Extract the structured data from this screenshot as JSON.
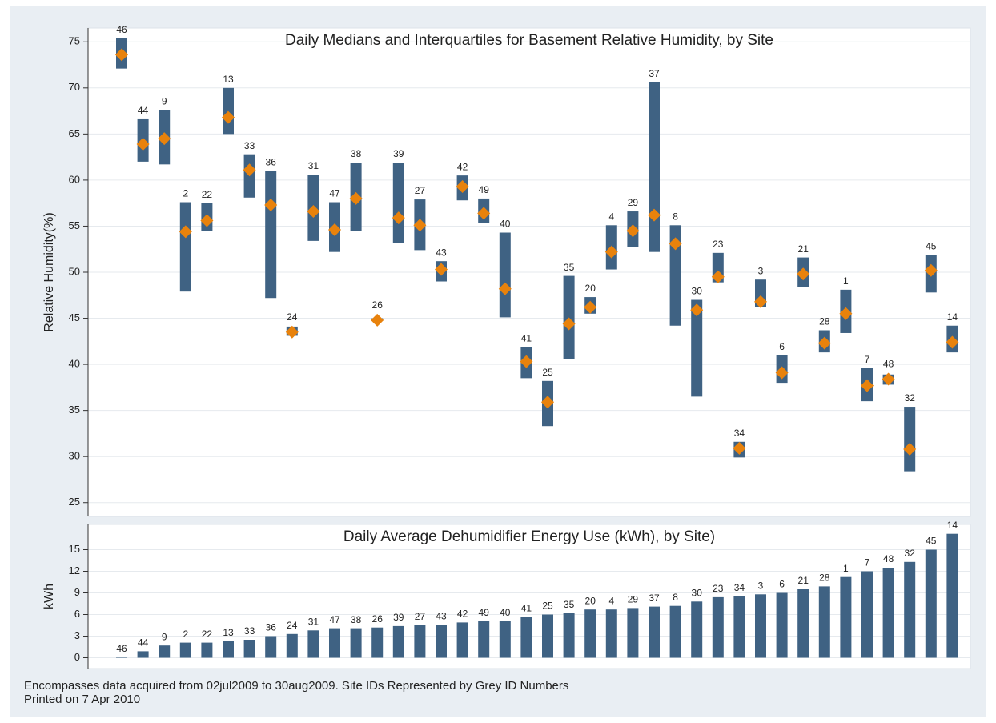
{
  "chart_data": [
    {
      "type": "box",
      "title": "Daily Medians and Interquartiles for Basement Relative Humidity, by Site",
      "y_label": "Relative Humidity(%)",
      "categories": [
        "46",
        "44",
        "9",
        "2",
        "22",
        "13",
        "33",
        "36",
        "24",
        "31",
        "47",
        "38",
        "26",
        "39",
        "27",
        "43",
        "42",
        "49",
        "40",
        "41",
        "25",
        "35",
        "20",
        "4",
        "29",
        "37",
        "8",
        "30",
        "23",
        "34",
        "3",
        "6",
        "21",
        "28",
        "1",
        "7",
        "48",
        "32",
        "45",
        "14"
      ],
      "q1": [
        72.1,
        62.0,
        61.7,
        47.9,
        54.5,
        65.0,
        58.1,
        47.2,
        43.1,
        53.4,
        52.2,
        54.5,
        44.7,
        53.2,
        52.4,
        49.0,
        57.8,
        55.3,
        45.1,
        38.5,
        33.3,
        40.6,
        45.5,
        50.3,
        52.7,
        52.2,
        44.2,
        36.5,
        48.9,
        29.9,
        46.2,
        38.0,
        48.4,
        41.3,
        43.4,
        36.0,
        37.8,
        28.4,
        47.8,
        41.3
      ],
      "median": [
        73.6,
        63.9,
        64.5,
        54.4,
        55.6,
        66.8,
        61.1,
        57.3,
        43.5,
        56.6,
        54.6,
        58.0,
        44.8,
        55.9,
        55.1,
        50.3,
        59.3,
        56.4,
        48.2,
        40.3,
        35.9,
        44.4,
        46.2,
        52.2,
        54.5,
        56.2,
        53.1,
        45.9,
        49.5,
        30.9,
        46.8,
        39.1,
        49.8,
        42.3,
        45.5,
        37.7,
        38.4,
        30.8,
        50.2,
        42.4
      ],
      "q3": [
        75.4,
        66.6,
        67.6,
        57.6,
        57.5,
        70.0,
        62.8,
        61.0,
        44.1,
        60.6,
        57.6,
        61.9,
        45.0,
        61.9,
        57.9,
        51.2,
        60.5,
        58.0,
        54.3,
        41.9,
        38.2,
        49.6,
        47.3,
        55.1,
        56.6,
        70.6,
        55.1,
        47.0,
        52.1,
        31.6,
        49.2,
        41.0,
        51.6,
        43.7,
        48.1,
        39.6,
        38.9,
        35.4,
        51.9,
        44.2
      ],
      "color": "#3f6283",
      "median_color": "#e8820c",
      "ylim": [
        23.5,
        76.5
      ],
      "yticks": [
        25,
        30,
        35,
        40,
        45,
        50,
        55,
        60,
        65,
        70,
        75
      ],
      "grid": true
    },
    {
      "type": "bar",
      "title": "Daily Average Dehumidifier Energy Use (kWh), by Site)",
      "y_label": "kWh",
      "categories": [
        "46",
        "44",
        "9",
        "2",
        "22",
        "13",
        "33",
        "36",
        "24",
        "31",
        "47",
        "38",
        "26",
        "39",
        "27",
        "43",
        "42",
        "49",
        "40",
        "41",
        "25",
        "35",
        "20",
        "4",
        "29",
        "37",
        "8",
        "30",
        "23",
        "34",
        "3",
        "6",
        "21",
        "28",
        "1",
        "7",
        "48",
        "32",
        "45",
        "14"
      ],
      "values": [
        0.1,
        0.9,
        1.7,
        2.1,
        2.1,
        2.3,
        2.5,
        3.0,
        3.3,
        3.8,
        4.1,
        4.1,
        4.2,
        4.4,
        4.5,
        4.6,
        4.9,
        5.1,
        5.1,
        5.7,
        6.0,
        6.2,
        6.7,
        6.7,
        6.9,
        7.1,
        7.2,
        7.8,
        8.4,
        8.5,
        8.8,
        9.0,
        9.5,
        9.9,
        11.2,
        12.0,
        12.5,
        13.3,
        15.0,
        17.2
      ],
      "color": "#3f6283",
      "ylim": [
        -1.5,
        18.5
      ],
      "yticks": [
        0,
        3,
        6,
        9,
        12,
        15
      ],
      "grid": true
    }
  ],
  "notes": [
    "Encompasses data acquired from 02jul2009 to 30aug2009.  Site IDs Represented by Grey ID Numbers",
    "Printed on 7 Apr 2010"
  ]
}
